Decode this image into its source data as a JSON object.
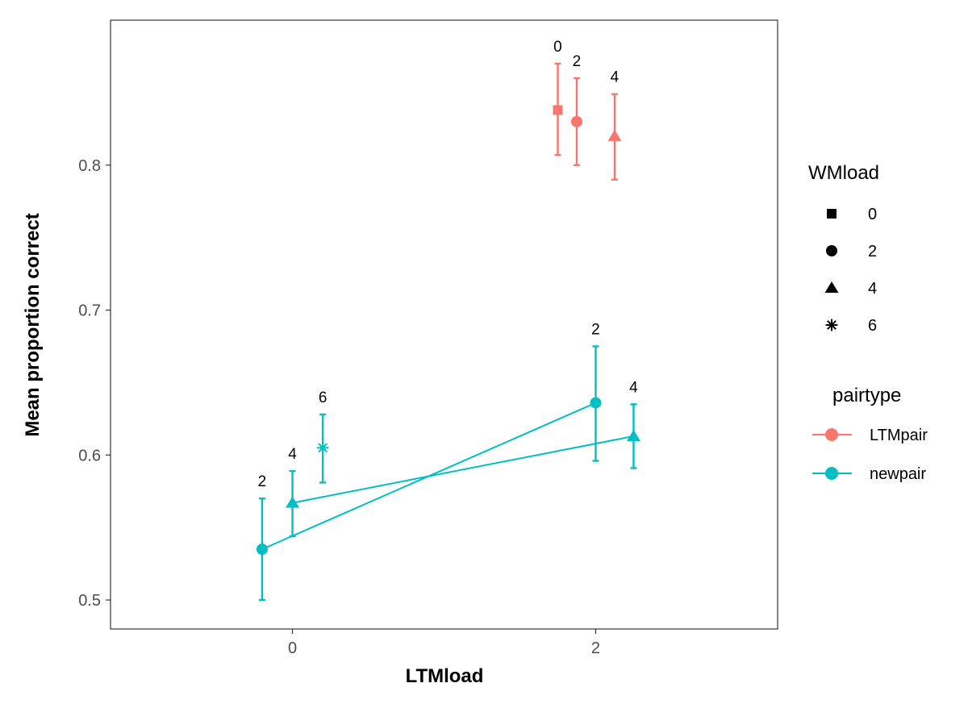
{
  "chart_data": {
    "type": "scatter",
    "xlabel": "LTMload",
    "ylabel": "Mean proportion correct",
    "x_ticks": [
      0,
      2
    ],
    "y_ticks": [
      0.5,
      0.6,
      0.7,
      0.8
    ],
    "xlim": [
      -1.2,
      3.2
    ],
    "ylim": [
      0.48,
      0.9
    ],
    "grid": false,
    "legend_position": "right",
    "colors": {
      "LTMpair": "#F8766D",
      "newpair": "#00BFC4"
    },
    "points": [
      {
        "pairtype": "LTMpair",
        "wmload": "0",
        "x": 1.75,
        "y": 0.838,
        "ymin": 0.807,
        "ymax": 0.87,
        "shape": "square"
      },
      {
        "pairtype": "LTMpair",
        "wmload": "2",
        "x": 1.875,
        "y": 0.83,
        "ymin": 0.8,
        "ymax": 0.86,
        "shape": "circle"
      },
      {
        "pairtype": "LTMpair",
        "wmload": "4",
        "x": 2.125,
        "y": 0.82,
        "ymin": 0.79,
        "ymax": 0.849,
        "shape": "triangle"
      },
      {
        "pairtype": "newpair",
        "wmload": "2",
        "x": -0.2,
        "y": 0.535,
        "ymin": 0.5,
        "ymax": 0.57,
        "shape": "circle"
      },
      {
        "pairtype": "newpair",
        "wmload": "4",
        "x": 0.0,
        "y": 0.567,
        "ymin": 0.544,
        "ymax": 0.589,
        "shape": "triangle"
      },
      {
        "pairtype": "newpair",
        "wmload": "6",
        "x": 0.2,
        "y": 0.605,
        "ymin": 0.581,
        "ymax": 0.628,
        "shape": "asterisk"
      },
      {
        "pairtype": "newpair",
        "wmload": "2",
        "x": 2.0,
        "y": 0.636,
        "ymin": 0.596,
        "ymax": 0.675,
        "shape": "circle"
      },
      {
        "pairtype": "newpair",
        "wmload": "4",
        "x": 2.25,
        "y": 0.613,
        "ymin": 0.591,
        "ymax": 0.635,
        "shape": "triangle"
      }
    ],
    "lines": [
      {
        "pairtype": "newpair",
        "wmload": "2",
        "from": [
          -0.2,
          0.535
        ],
        "to": [
          2.0,
          0.636
        ]
      },
      {
        "pairtype": "newpair",
        "wmload": "4",
        "from": [
          0.0,
          0.567
        ],
        "to": [
          2.25,
          0.613
        ]
      }
    ],
    "legends": {
      "wmload": {
        "title": "WMload",
        "items": [
          {
            "label": "0",
            "shape": "square"
          },
          {
            "label": "2",
            "shape": "circle"
          },
          {
            "label": "4",
            "shape": "triangle"
          },
          {
            "label": "6",
            "shape": "asterisk"
          }
        ]
      },
      "pairtype": {
        "title": "pairtype",
        "items": [
          {
            "label": "LTMpair"
          },
          {
            "label": "newpair"
          }
        ]
      }
    }
  }
}
